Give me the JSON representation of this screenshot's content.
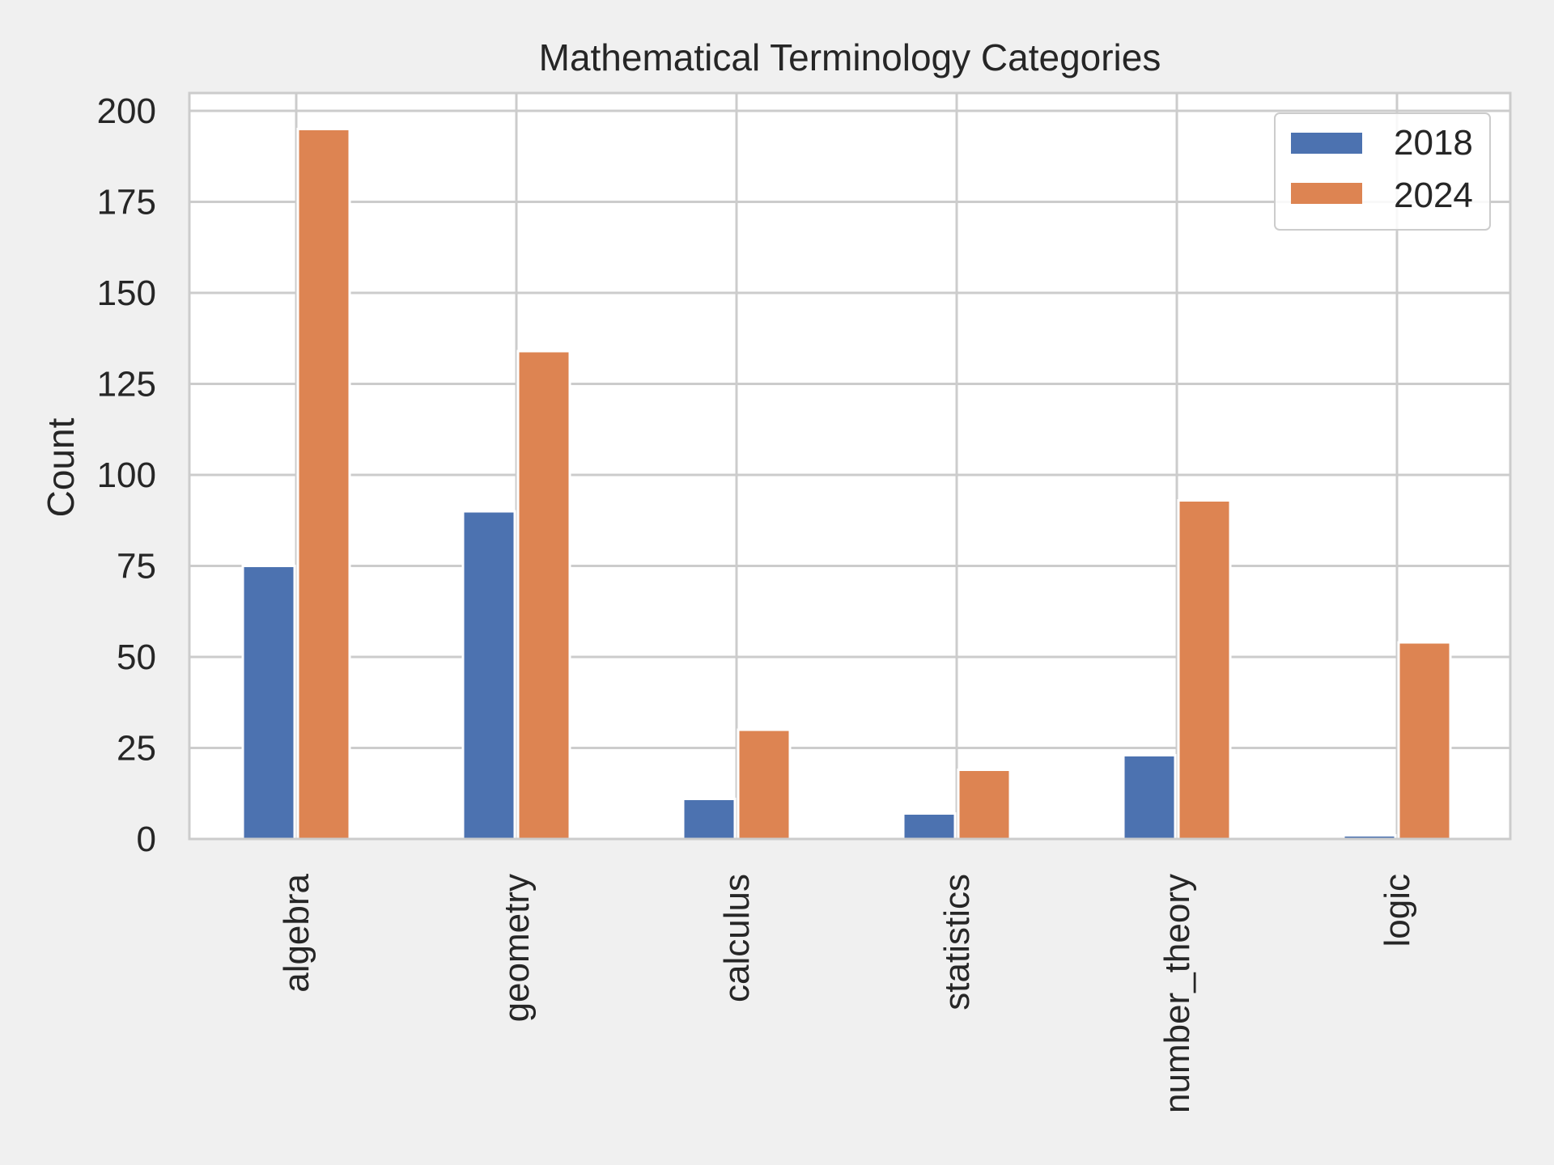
{
  "chart_data": {
    "type": "bar",
    "title": "Mathematical Terminology Categories",
    "xlabel": "",
    "ylabel": "Count",
    "categories": [
      "algebra",
      "geometry",
      "calculus",
      "statistics",
      "number_theory",
      "logic"
    ],
    "series": [
      {
        "name": "2018",
        "color": "#4c72b0",
        "values": [
          75,
          90,
          11,
          7,
          23,
          1
        ]
      },
      {
        "name": "2024",
        "color": "#dd8452",
        "values": [
          195,
          134,
          30,
          19,
          93,
          54
        ]
      }
    ],
    "ylim": [
      0,
      200
    ],
    "yticks": [
      0,
      25,
      50,
      75,
      100,
      125,
      150,
      175,
      200
    ],
    "grid": true,
    "legend_position": "top-right"
  }
}
